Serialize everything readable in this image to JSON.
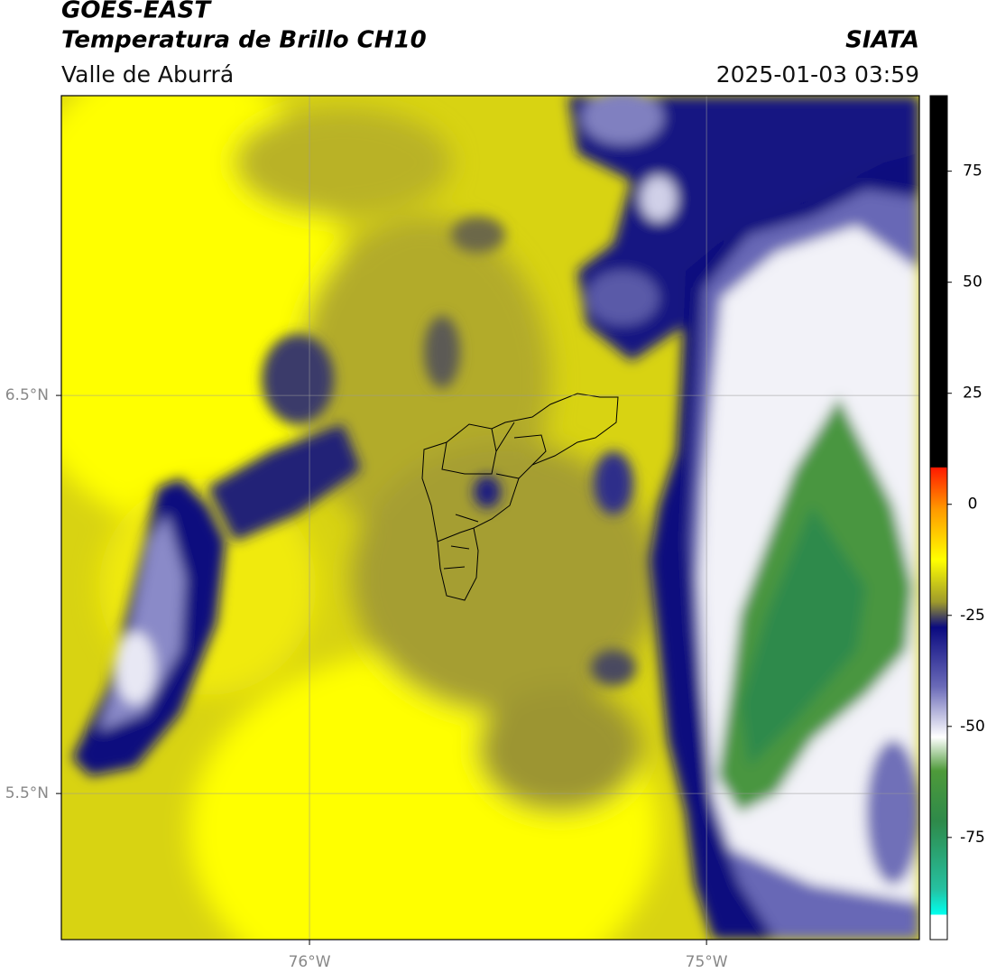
{
  "header": {
    "title": "GOES-EAST",
    "subtitle": "Temperatura de Brillo CH10",
    "region": "Valle de Aburrá",
    "source": "SIATA",
    "datetime": "2025-01-03 03:59"
  },
  "map": {
    "xlim": [
      -76.625,
      -74.464
    ],
    "ylim": [
      5.133,
      7.253
    ],
    "xticks": [
      {
        "value": -76,
        "label": "76°W"
      },
      {
        "value": -75,
        "label": "75°W"
      }
    ],
    "yticks": [
      {
        "value": 6.5,
        "label": "6.5°N"
      },
      {
        "value": 5.5,
        "label": "5.5°N"
      }
    ],
    "grid": true
  },
  "colorbar": {
    "lim": [
      -98,
      92
    ],
    "ticks": [
      75,
      50,
      25,
      0,
      -25,
      -50,
      -75
    ]
  }
}
